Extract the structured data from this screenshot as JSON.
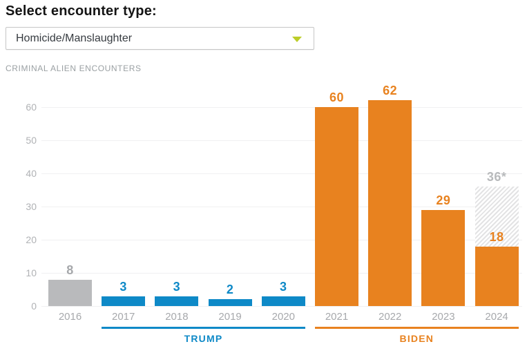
{
  "header": {
    "title": "Select encounter type:"
  },
  "dropdown": {
    "value": "Homicide/Manslaughter"
  },
  "chart_data": {
    "type": "bar",
    "title": "CRIMINAL ALIEN ENCOUNTERS",
    "categories": [
      "2016",
      "2017",
      "2018",
      "2019",
      "2020",
      "2021",
      "2022",
      "2023",
      "2024"
    ],
    "values": [
      8,
      3,
      3,
      2,
      3,
      60,
      62,
      29,
      18
    ],
    "bar_colors": [
      "gray",
      "blue",
      "blue",
      "blue",
      "blue",
      "orange",
      "orange",
      "orange",
      "orange"
    ],
    "projected": {
      "category": "2024",
      "value": 36,
      "label": "36*"
    },
    "yticks": [
      0,
      10,
      20,
      30,
      40,
      50,
      60
    ],
    "ylim": [
      0,
      62
    ],
    "grid": true,
    "legend_position": "none",
    "eras": [
      {
        "label": "TRUMP",
        "from": "2017",
        "to": "2020",
        "color_key": "blue"
      },
      {
        "label": "BIDEN",
        "from": "2021",
        "to": "2024",
        "color_key": "orange"
      }
    ]
  },
  "colors": {
    "blue": "#0e89c7",
    "orange": "#e8821f",
    "gray": "#b9babc",
    "gray_value_label": "#a6a8ab",
    "projected_label": "#b8babc",
    "axis_label": "#a7a9ac",
    "tick_label": "#b0b2b5",
    "gridline": "#f0f0f1",
    "chart_title": "#9aa0a3",
    "dropdown_arrow": "#bccd28",
    "hatch_stripe": "#e3e3e4"
  }
}
